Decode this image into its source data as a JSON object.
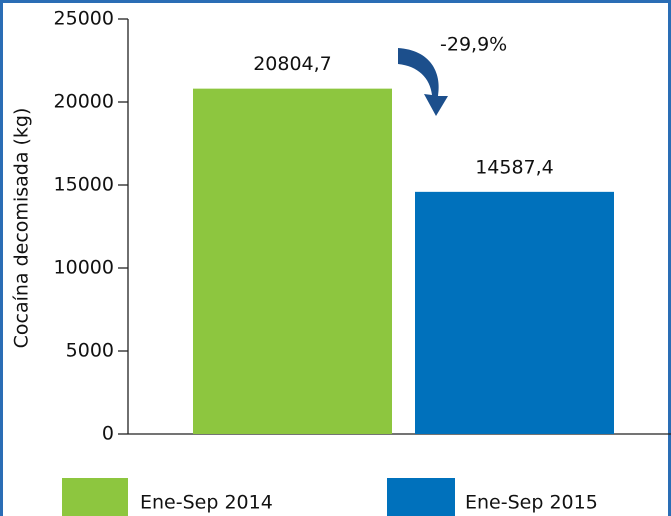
{
  "chart_data": {
    "type": "bar",
    "y_label": "Cocaína decomisada (kg)",
    "categories": [
      "Ene-Sep 2014",
      "Ene-Sep 2015"
    ],
    "values": [
      20804.7,
      14587.4
    ],
    "value_labels": [
      "20804,7",
      "14587,4"
    ],
    "colors": [
      "#8dc63f",
      "#0071bc"
    ],
    "annotation": "-29,9%",
    "ylim": [
      0,
      25000
    ],
    "yticks": [
      0,
      5000,
      10000,
      15000,
      20000,
      25000
    ],
    "legend": "bottom"
  }
}
